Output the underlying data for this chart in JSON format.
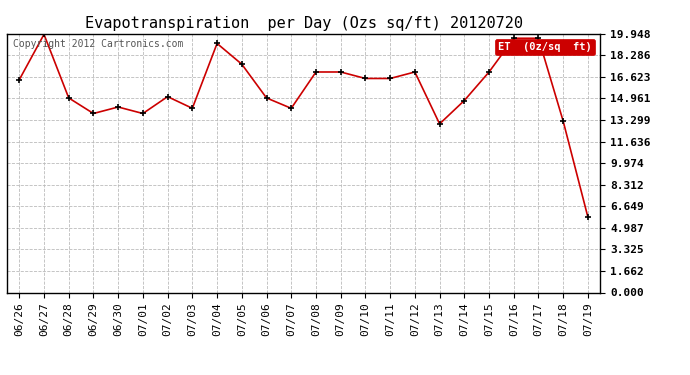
{
  "title": "Evapotranspiration  per Day (Ozs sq/ft) 20120720",
  "copyright": "Copyright 2012 Cartronics.com",
  "legend_label": "ET  (0z/sq  ft)",
  "x_labels": [
    "06/26",
    "06/27",
    "06/28",
    "06/29",
    "06/30",
    "07/01",
    "07/02",
    "07/03",
    "07/04",
    "07/05",
    "07/06",
    "07/07",
    "07/08",
    "07/09",
    "07/10",
    "07/11",
    "07/12",
    "07/13",
    "07/14",
    "07/15",
    "07/16",
    "07/17",
    "07/18",
    "07/19"
  ],
  "y_values": [
    16.4,
    19.9,
    15.0,
    13.8,
    14.3,
    13.8,
    15.1,
    14.2,
    19.2,
    17.6,
    15.0,
    14.2,
    17.0,
    17.0,
    16.5,
    16.5,
    17.0,
    13.0,
    14.8,
    17.0,
    19.6,
    19.6,
    13.2,
    5.8
  ],
  "y_ticks": [
    0.0,
    1.662,
    3.325,
    4.987,
    6.649,
    8.312,
    9.974,
    11.636,
    13.299,
    14.961,
    16.623,
    18.286,
    19.948
  ],
  "y_min": 0.0,
  "y_max": 19.948,
  "line_color": "#cc0000",
  "marker": "+",
  "marker_color": "#000000",
  "background_color": "#ffffff",
  "grid_color": "#bbbbbb",
  "legend_bg": "#cc0000",
  "legend_text_color": "#ffffff",
  "title_fontsize": 11,
  "copyright_fontsize": 7,
  "tick_fontsize": 8,
  "border_color": "#000000"
}
